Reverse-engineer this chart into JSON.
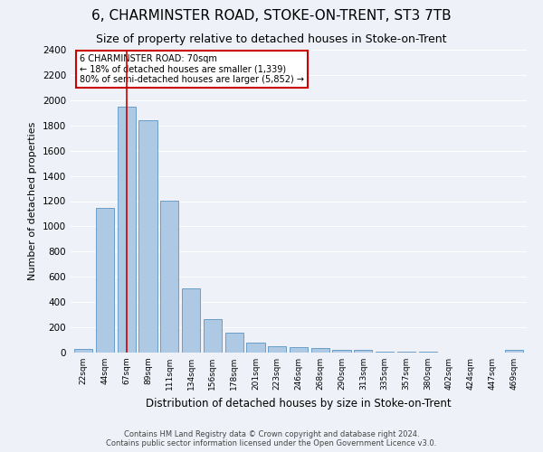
{
  "title": "6, CHARMINSTER ROAD, STOKE-ON-TRENT, ST3 7TB",
  "subtitle": "Size of property relative to detached houses in Stoke-on-Trent",
  "xlabel": "Distribution of detached houses by size in Stoke-on-Trent",
  "ylabel": "Number of detached properties",
  "footer_line1": "Contains HM Land Registry data © Crown copyright and database right 2024.",
  "footer_line2": "Contains public sector information licensed under the Open Government Licence v3.0.",
  "categories": [
    "22sqm",
    "44sqm",
    "67sqm",
    "89sqm",
    "111sqm",
    "134sqm",
    "156sqm",
    "178sqm",
    "201sqm",
    "223sqm",
    "246sqm",
    "268sqm",
    "290sqm",
    "313sqm",
    "335sqm",
    "357sqm",
    "380sqm",
    "402sqm",
    "424sqm",
    "447sqm",
    "469sqm"
  ],
  "values": [
    30,
    1145,
    1950,
    1840,
    1205,
    510,
    265,
    155,
    80,
    50,
    45,
    35,
    20,
    20,
    10,
    5,
    5,
    0,
    0,
    0,
    20
  ],
  "bar_color": "#aec9e3",
  "bar_edge_color": "#6b9ec8",
  "highlight_index": 2,
  "highlight_line_color": "#cc0000",
  "ylim": [
    0,
    2400
  ],
  "yticks": [
    0,
    200,
    400,
    600,
    800,
    1000,
    1200,
    1400,
    1600,
    1800,
    2000,
    2200,
    2400
  ],
  "annotation_title": "6 CHARMINSTER ROAD: 70sqm",
  "annotation_line1": "← 18% of detached houses are smaller (1,339)",
  "annotation_line2": "80% of semi-detached houses are larger (5,852) →",
  "annotation_box_color": "#ffffff",
  "annotation_box_edge_color": "#cc0000",
  "vline_color": "#cc0000",
  "bg_color": "#eef2f8",
  "grid_color": "#ffffff",
  "title_fontsize": 11,
  "subtitle_fontsize": 9
}
